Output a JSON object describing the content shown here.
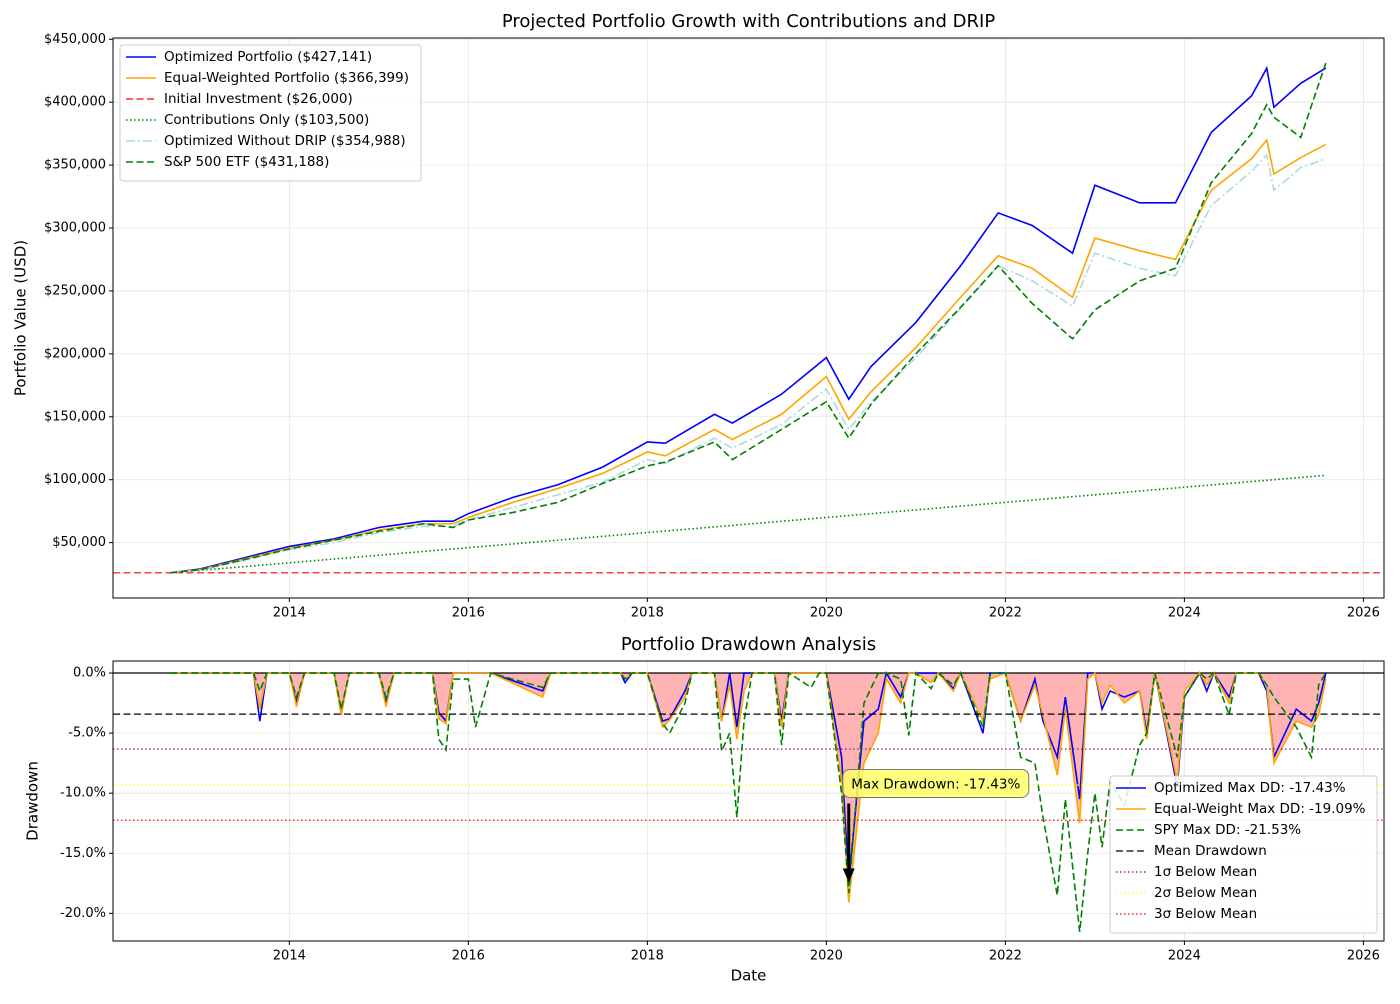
{
  "chart_data": [
    {
      "type": "line",
      "title": "Projected Portfolio Growth with Contributions and DRIP",
      "ylabel": "Portfolio Value (USD)",
      "legend": "upper left",
      "grid": true,
      "x": [
        2012.67,
        2013.0,
        2013.5,
        2014.0,
        2014.5,
        2015.0,
        2015.5,
        2015.83,
        2016.0,
        2016.5,
        2017.0,
        2017.5,
        2018.0,
        2018.2,
        2018.75,
        2018.95,
        2019.5,
        2020.0,
        2020.25,
        2020.5,
        2021.0,
        2021.5,
        2021.92,
        2022.3,
        2022.75,
        2023.0,
        2023.5,
        2023.9,
        2024.3,
        2024.75,
        2024.92,
        2025.0,
        2025.3,
        2025.58
      ],
      "xlim": [
        2012.03,
        2026.23
      ],
      "xticks": [
        2014,
        2016,
        2018,
        2020,
        2022,
        2024,
        2026
      ],
      "ylim": [
        6000,
        451000
      ],
      "yticks": [
        {
          "value": 50000,
          "label": "$50,000"
        },
        {
          "value": 100000,
          "label": "$100,000"
        },
        {
          "value": 150000,
          "label": "$150,000"
        },
        {
          "value": 200000,
          "label": "$200,000"
        },
        {
          "value": 250000,
          "label": "$250,000"
        },
        {
          "value": 300000,
          "label": "$300,000"
        },
        {
          "value": 350000,
          "label": "$350,000"
        },
        {
          "value": 400000,
          "label": "$400,000"
        },
        {
          "value": 450000,
          "label": "$450,000"
        }
      ],
      "series": [
        {
          "name": "Optimized Portfolio ($427,141)",
          "color": "#0000ff",
          "style": "solid",
          "values": [
            26000,
            29000,
            38000,
            47000,
            53000,
            62000,
            67000,
            67000,
            73000,
            86000,
            96000,
            110000,
            130000,
            129000,
            152000,
            145000,
            168000,
            197000,
            164000,
            190000,
            225000,
            270000,
            312000,
            302000,
            280000,
            334000,
            320000,
            320000,
            376000,
            405000,
            427000,
            396000,
            415000,
            427141
          ]
        },
        {
          "name": "Equal-Weighted Portfolio ($366,399)",
          "color": "#ffa500",
          "style": "solid",
          "values": [
            26000,
            28500,
            37000,
            45500,
            52000,
            60000,
            65000,
            65000,
            70000,
            82000,
            93000,
            105000,
            122000,
            119000,
            140000,
            132000,
            152000,
            182000,
            148000,
            170000,
            205000,
            245000,
            278000,
            268000,
            245000,
            292000,
            282000,
            275000,
            330000,
            355000,
            370000,
            343000,
            356000,
            366399
          ]
        },
        {
          "name": "Initial Investment ($26,000)",
          "color": "#ff0000",
          "style": "dashed",
          "hline": 26000
        },
        {
          "name": "Contributions Only ($103,500)",
          "color": "#008000",
          "style": "dotted",
          "values": [
            26000,
            27981,
            30982,
            33984,
            36985,
            39987,
            42988,
            44969,
            45990,
            48991,
            51993,
            54994,
            57996,
            59196,
            62498,
            63698,
            66999,
            70001,
            71502,
            73002,
            76004,
            79005,
            81526,
            83808,
            86509,
            88010,
            91011,
            93412,
            95814,
            98515,
            99535,
            100015,
            101816,
            103500
          ]
        },
        {
          "name": "Optimized Without DRIP ($354,988)",
          "color": "#add8e6",
          "style": "dashdot",
          "values": [
            26000,
            28000,
            36000,
            44500,
            50000,
            58000,
            63000,
            63000,
            68000,
            78000,
            88000,
            98000,
            116000,
            113000,
            133000,
            125000,
            144000,
            172000,
            140000,
            162000,
            197000,
            236000,
            270000,
            258000,
            238000,
            280000,
            268000,
            262000,
            318000,
            345000,
            358000,
            330000,
            348000,
            354988
          ]
        },
        {
          "name": "S&P 500 ETF ($431,188)",
          "color": "#008000",
          "style": "dashed",
          "values": [
            26000,
            28500,
            36500,
            45000,
            52000,
            59000,
            65000,
            62000,
            68000,
            74000,
            82000,
            97000,
            111000,
            114000,
            130000,
            116000,
            140000,
            162000,
            133000,
            160000,
            200000,
            237000,
            270000,
            240000,
            212000,
            235000,
            258000,
            268000,
            336000,
            375000,
            398000,
            388000,
            372000,
            431188
          ]
        }
      ]
    },
    {
      "type": "line",
      "title": "Portfolio Drawdown Analysis",
      "xlabel": "Date",
      "ylabel": "Drawdown",
      "legend": "lower right",
      "grid": true,
      "x": [
        2012.67,
        2013.6,
        2013.67,
        2013.75,
        2014.0,
        2014.08,
        2014.17,
        2014.5,
        2014.58,
        2014.67,
        2015.0,
        2015.08,
        2015.17,
        2015.6,
        2015.67,
        2015.75,
        2015.83,
        2016.0,
        2016.08,
        2016.25,
        2016.83,
        2016.92,
        2017.7,
        2017.75,
        2017.83,
        2018.0,
        2018.17,
        2018.25,
        2018.42,
        2018.5,
        2018.75,
        2018.83,
        2018.92,
        2019.0,
        2019.08,
        2019.17,
        2019.42,
        2019.5,
        2019.58,
        2019.83,
        2019.92,
        2020.0,
        2020.17,
        2020.25,
        2020.42,
        2020.58,
        2020.67,
        2020.83,
        2020.92,
        2021.0,
        2021.17,
        2021.25,
        2021.42,
        2021.5,
        2021.75,
        2021.83,
        2022.0,
        2022.17,
        2022.33,
        2022.42,
        2022.58,
        2022.67,
        2022.83,
        2022.92,
        2023.0,
        2023.08,
        2023.17,
        2023.33,
        2023.5,
        2023.58,
        2023.67,
        2023.92,
        2024.0,
        2024.17,
        2024.25,
        2024.33,
        2024.5,
        2024.58,
        2024.83,
        2024.92,
        2025.0,
        2025.25,
        2025.42,
        2025.5,
        2025.58
      ],
      "xlim": [
        2012.03,
        2026.23
      ],
      "xticks": [
        2014,
        2016,
        2018,
        2020,
        2022,
        2024,
        2026
      ],
      "ylim": [
        -22.3,
        1
      ],
      "yticks": [
        {
          "value": -20,
          "label": "-20.0%"
        },
        {
          "value": -15,
          "label": "-15.0%"
        },
        {
          "value": -10,
          "label": "-10.0%"
        },
        {
          "value": -5,
          "label": "-5.0%"
        },
        {
          "value": 0,
          "label": "0.0%"
        }
      ],
      "series": [
        {
          "color": "#000000",
          "style": "solid",
          "hline": 0
        },
        {
          "name": "Optimized Max DD: -17.43%",
          "color": "#0000ff",
          "style": "solid",
          "values": [
            0,
            0,
            -4.0,
            0,
            0,
            -2.5,
            0,
            0,
            -3.3,
            0,
            0,
            -2.5,
            0,
            0,
            -3.3,
            -4.0,
            0,
            0,
            0,
            0,
            -1.5,
            0,
            0,
            -0.8,
            0,
            0,
            -4.0,
            -3.8,
            -1.5,
            0,
            0,
            -4.0,
            0,
            -4.5,
            0,
            0,
            0,
            -4.0,
            0,
            0,
            0,
            0,
            -7.0,
            -17.43,
            -4.0,
            -3.0,
            0,
            -2.0,
            0,
            0,
            0,
            0,
            -1.3,
            0,
            -5.0,
            0,
            0,
            -4.0,
            -0.5,
            -4.0,
            -7.0,
            -2.0,
            -10.5,
            0,
            0,
            -3.0,
            -1.5,
            -2.0,
            -1.5,
            -5.0,
            0,
            -9.5,
            -2.0,
            0,
            -1.5,
            0,
            -2.0,
            0,
            0,
            -1.5,
            -7.0,
            -3.0,
            -4.0,
            -2.5,
            0
          ]
        },
        {
          "name": "Equal-Weight Max DD: -19.09%",
          "color": "#ffa500",
          "style": "solid",
          "fill": "#ffb3b3",
          "values": [
            0,
            0,
            -3.0,
            0,
            0,
            -2.8,
            0,
            0,
            -3.5,
            0,
            0,
            -2.8,
            0,
            0,
            -3.8,
            -4.2,
            0,
            0,
            0,
            0,
            -2.0,
            0,
            0,
            -0.5,
            0,
            0,
            -4.5,
            -3.9,
            -2.0,
            0,
            0,
            -4.0,
            -1.0,
            -5.5,
            -1.5,
            0,
            0,
            -4.5,
            0,
            0,
            0,
            0,
            -9.0,
            -19.09,
            -7.5,
            -5.0,
            -0.5,
            -2.5,
            0,
            0,
            -0.8,
            0,
            -1.5,
            0,
            -4.0,
            -0.5,
            0,
            -4.0,
            -1.0,
            -3.5,
            -8.5,
            -3.0,
            -12.5,
            -0.5,
            0,
            -2.5,
            -1.0,
            -2.5,
            -1.5,
            -5.5,
            0,
            -9.0,
            -1.5,
            0,
            -1.0,
            0,
            -2.5,
            0,
            0,
            -1.0,
            -7.5,
            -4.0,
            -4.5,
            -3.5,
            -0.5
          ]
        },
        {
          "name": "SPY Max DD: -21.53%",
          "color": "#008000",
          "style": "dashed",
          "values": [
            0,
            0,
            -1.5,
            0,
            0,
            -2.0,
            0,
            0,
            -3.0,
            0,
            0,
            -2.0,
            0,
            0,
            -5.5,
            -6.4,
            -0.5,
            -0.5,
            -4.5,
            0,
            -1.2,
            0,
            0,
            -0.5,
            0,
            0,
            -4.2,
            -5.0,
            -2.5,
            0,
            0,
            -6.5,
            -5.0,
            -12.0,
            -4.0,
            0,
            0,
            -6.0,
            0,
            -1.2,
            0,
            0,
            -10.0,
            -18.3,
            -2.5,
            0,
            0,
            -0.5,
            -5.2,
            0,
            -1.3,
            0,
            -1.0,
            0,
            -4.5,
            0,
            0,
            -7.0,
            -7.5,
            -12.0,
            -18.5,
            -10.5,
            -21.53,
            -15.0,
            -10.0,
            -14.5,
            -9.0,
            -11.0,
            -6.0,
            -5.0,
            0,
            -7.0,
            -2.0,
            0,
            -0.5,
            0,
            -3.5,
            0,
            0,
            -1.0,
            -2.0,
            -4.5,
            -7.0,
            -1.0,
            0
          ]
        },
        {
          "name": "Mean Drawdown",
          "color": "#000000",
          "style": "dashed",
          "hline": -3.42
        },
        {
          "name": "1σ Below Mean",
          "color": "#800080",
          "style": "dotted",
          "hline": -6.33
        },
        {
          "name": "2σ Below Mean",
          "color": "#ffff00",
          "style": "dotted",
          "hline": -9.33
        },
        {
          "name": "3σ Below Mean",
          "color": "#ff0000",
          "style": "dotted",
          "hline": -12.25
        }
      ],
      "annotation": {
        "text": "Max Drawdown: -17.43%",
        "x": 2020.25,
        "y": -17.43
      }
    }
  ]
}
